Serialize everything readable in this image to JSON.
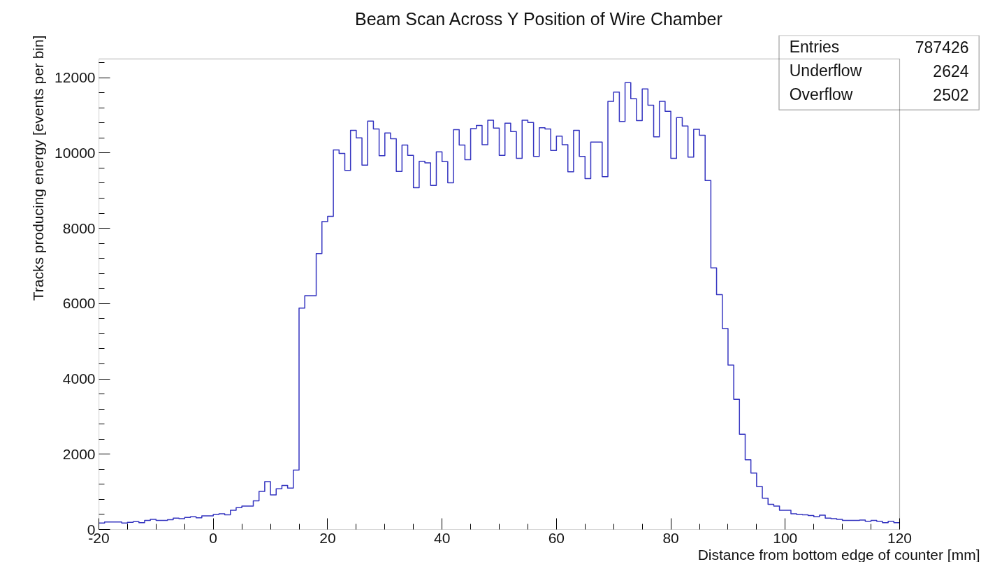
{
  "chart_data": {
    "type": "histogram",
    "title": "Beam Scan Across Y Position of Wire Chamber",
    "xlabel": "Distance from bottom edge of counter [mm]",
    "ylabel": "Tracks producing energy [events per bin]",
    "bins": [
      -20,
      -19,
      -18,
      -17,
      -16,
      -15,
      -14,
      -13,
      -12,
      -11,
      -10,
      -9,
      -8,
      -7,
      -6,
      -5,
      -4,
      -3,
      -2,
      -1,
      0,
      1,
      2,
      3,
      4,
      5,
      6,
      7,
      8,
      9,
      10,
      11,
      12,
      13,
      14,
      15,
      16,
      17,
      18,
      19,
      20,
      21,
      22,
      23,
      24,
      25,
      26,
      27,
      28,
      29,
      30,
      31,
      32,
      33,
      34,
      35,
      36,
      37,
      38,
      39,
      40,
      41,
      42,
      43,
      44,
      45,
      46,
      47,
      48,
      49,
      50,
      51,
      52,
      53,
      54,
      55,
      56,
      57,
      58,
      59,
      60,
      61,
      62,
      63,
      64,
      65,
      66,
      67,
      68,
      69,
      70,
      71,
      72,
      73,
      74,
      75,
      76,
      77,
      78,
      79,
      80,
      81,
      82,
      83,
      84,
      85,
      86,
      87,
      88,
      89,
      90,
      91,
      92,
      93,
      94,
      95,
      96,
      97,
      98,
      99,
      100,
      101,
      102,
      103,
      104,
      105,
      106,
      107,
      108,
      109,
      110,
      111,
      112,
      113,
      114,
      115,
      116,
      117,
      118,
      119,
      120
    ],
    "values": [
      170,
      200,
      200,
      200,
      170,
      190,
      210,
      180,
      240,
      270,
      240,
      240,
      260,
      300,
      290,
      320,
      340,
      310,
      360,
      360,
      400,
      420,
      390,
      510,
      580,
      620,
      620,
      760,
      1010,
      1270,
      920,
      1080,
      1170,
      1100,
      1580,
      5880,
      6210,
      6210,
      7330,
      8180,
      8320,
      10080,
      9990,
      9540,
      10600,
      10400,
      9680,
      10850,
      10640,
      9930,
      10530,
      10380,
      9510,
      10210,
      9940,
      9080,
      9780,
      9740,
      9140,
      10030,
      9770,
      9210,
      10620,
      10210,
      9820,
      10650,
      10730,
      10220,
      10870,
      10660,
      9940,
      10790,
      10570,
      9860,
      10870,
      10810,
      9910,
      10670,
      10640,
      10070,
      10450,
      10220,
      9500,
      10600,
      9910,
      9320,
      10290,
      10290,
      9370,
      11370,
      11620,
      10840,
      11870,
      11440,
      10860,
      11700,
      11270,
      10430,
      11370,
      11110,
      9860,
      10940,
      10720,
      9890,
      10630,
      10470,
      9270,
      6950,
      6240,
      5340,
      4370,
      3460,
      2530,
      1850,
      1500,
      1140,
      830,
      670,
      620,
      510,
      510,
      420,
      400,
      390,
      370,
      340,
      380,
      300,
      290,
      270,
      240,
      240,
      240,
      250,
      220,
      240,
      220,
      180,
      220,
      180
    ],
    "color": "#3535c0",
    "xlim": [
      -20,
      120
    ],
    "xticks": [
      -20,
      0,
      20,
      40,
      60,
      80,
      100,
      120
    ],
    "ylim": [
      0,
      12500
    ],
    "yticks": [
      0,
      2000,
      4000,
      6000,
      8000,
      10000,
      12000
    ],
    "annotations": [
      "Entries",
      "787426",
      "Underflow",
      "2624",
      "Overflow",
      "2502"
    ],
    "grid": false
  }
}
